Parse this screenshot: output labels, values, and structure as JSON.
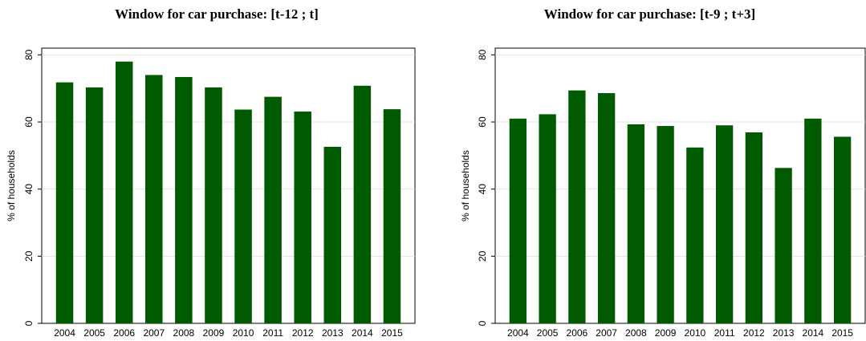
{
  "chart_data": [
    {
      "type": "bar",
      "title": "Window for car purchase: [t-12 ; t]",
      "xlabel": "",
      "ylabel": "% of households",
      "categories": [
        "2004",
        "2005",
        "2006",
        "2007",
        "2008",
        "2009",
        "2010",
        "2011",
        "2012",
        "2013",
        "2014",
        "2015"
      ],
      "values": [
        71.8,
        70.3,
        78.0,
        74.0,
        73.4,
        70.3,
        63.7,
        67.5,
        63.1,
        52.6,
        70.8,
        63.8
      ],
      "yticks": [
        "0",
        "20",
        "40",
        "60",
        "80"
      ],
      "ylim": [
        0,
        82
      ],
      "grid": true,
      "bar_color": "#005a00"
    },
    {
      "type": "bar",
      "title": "Window for car purchase: [t-9 ; t+3]",
      "xlabel": "",
      "ylabel": "% of households",
      "categories": [
        "2004",
        "2005",
        "2006",
        "2007",
        "2008",
        "2009",
        "2010",
        "2011",
        "2012",
        "2013",
        "2014",
        "2015"
      ],
      "values": [
        61.0,
        62.3,
        69.4,
        68.6,
        59.3,
        58.8,
        52.4,
        59.0,
        56.9,
        46.3,
        61.0,
        55.6
      ],
      "yticks": [
        "0",
        "20",
        "40",
        "60",
        "80"
      ],
      "ylim": [
        0,
        82
      ],
      "grid": true,
      "bar_color": "#005a00"
    }
  ]
}
